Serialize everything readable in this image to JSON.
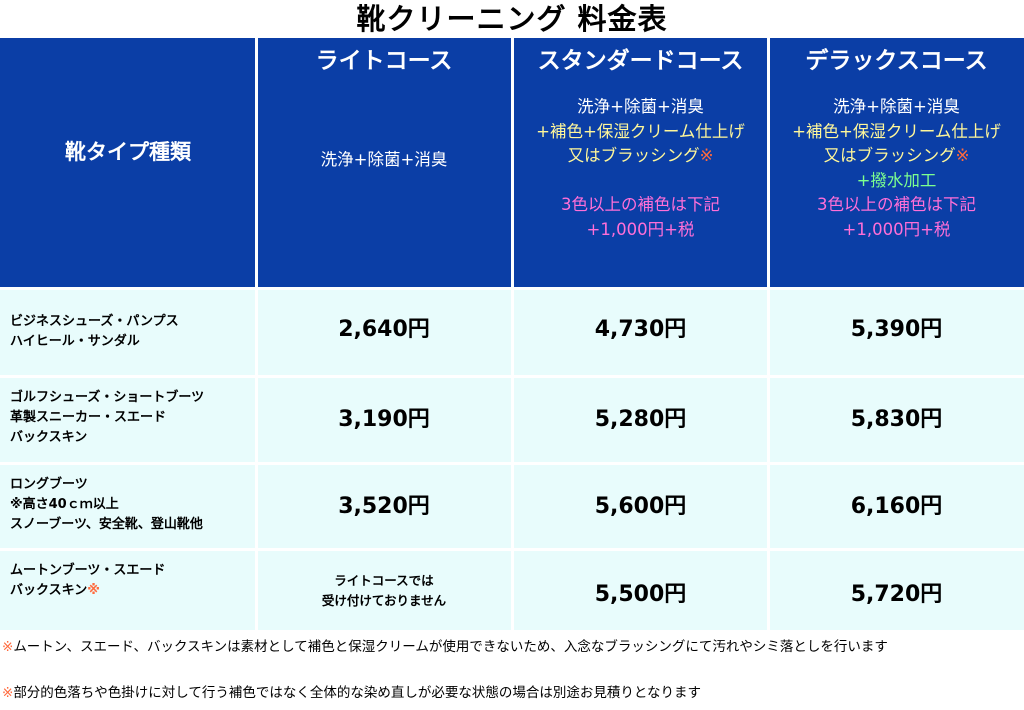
{
  "title": "靴クリーニング 料金表",
  "header": {
    "type_label": "靴タイプ種類",
    "courses": [
      {
        "name": "ライトコース",
        "lines": [
          [
            {
              "t": "洗浄+除菌+消臭",
              "c": "w"
            }
          ]
        ]
      },
      {
        "name": "スタンダードコース",
        "lines": [
          [
            {
              "t": "洗浄+除菌+消臭",
              "c": "w"
            }
          ],
          [
            {
              "t": "+補色+保湿クリーム仕上げ",
              "c": "y"
            }
          ],
          [
            {
              "t": "又はブラッシング",
              "c": "y"
            },
            {
              "t": "※",
              "c": "o"
            }
          ],
          [
            {
              "t": "",
              "c": "w"
            }
          ],
          [
            {
              "t": "3色以上の補色は下記",
              "c": "p"
            }
          ],
          [
            {
              "t": "+1,000円+税",
              "c": "p"
            }
          ]
        ]
      },
      {
        "name": "デラックスコース",
        "lines": [
          [
            {
              "t": "洗浄+除菌+消臭",
              "c": "w"
            }
          ],
          [
            {
              "t": "+補色+保湿クリーム仕上げ",
              "c": "y"
            }
          ],
          [
            {
              "t": "又はブラッシング",
              "c": "y"
            },
            {
              "t": "※",
              "c": "o"
            }
          ],
          [
            {
              "t": "+撥水加工",
              "c": "g"
            }
          ],
          [
            {
              "t": "3色以上の補色は下記",
              "c": "p"
            }
          ],
          [
            {
              "t": "+1,000円+税",
              "c": "p"
            }
          ]
        ]
      }
    ]
  },
  "rows": [
    {
      "types": [
        [
          {
            "t": "ビジネスシューズ・パンプス",
            "c": ""
          }
        ],
        [
          {
            "t": "ハイヒール・サンダル",
            "c": ""
          }
        ]
      ],
      "light": "2,640円",
      "standard": "4,730円",
      "deluxe": "5,390円"
    },
    {
      "types": [
        [
          {
            "t": "ゴルフシューズ・ショートブーツ",
            "c": ""
          }
        ],
        [
          {
            "t": "革製スニーカー・スエード",
            "c": ""
          }
        ],
        [
          {
            "t": "バックスキン",
            "c": ""
          }
        ]
      ],
      "light": "3,190円",
      "standard": "5,280円",
      "deluxe": "5,830円"
    },
    {
      "types": [
        [
          {
            "t": "ロングブーツ",
            "c": ""
          }
        ],
        [
          {
            "t": "※高さ40ｃｍ以上",
            "c": ""
          }
        ],
        [
          {
            "t": "スノーブーツ、安全靴、登山靴他",
            "c": ""
          }
        ]
      ],
      "light": "3,520円",
      "standard": "5,600円",
      "deluxe": "6,160円"
    },
    {
      "types": [
        [
          {
            "t": "ムートンブーツ・スエード",
            "c": ""
          }
        ],
        [
          {
            "t": "バックスキン",
            "c": ""
          },
          {
            "t": "※",
            "c": "o"
          }
        ]
      ],
      "light_unavailable": [
        "ライトコースでは",
        "受け付けておりません"
      ],
      "standard": "5,500円",
      "deluxe": "5,720円"
    }
  ],
  "notes": [
    [
      {
        "t": "※",
        "c": "o"
      },
      {
        "t": "ムートン、スエード、バックスキンは素材として補色と保湿クリームが使用できないため、入念なブラッシングにて汚れやシミ落としを行います",
        "c": ""
      }
    ],
    [
      {
        "t": "※",
        "c": "o"
      },
      {
        "t": "部分的色落ちや色掛けに対して行う補色ではなく全体的な染め直しが必要な状態の場合は別途お見積りとなります",
        "c": ""
      }
    ]
  ],
  "colors": {
    "header_bg": "#0b3ea6",
    "row_bg": "#e8fcfc",
    "yellow": "#fff79a",
    "pink": "#ff6fd8",
    "green": "#7dff8f",
    "orange": "#ff6a3d"
  }
}
